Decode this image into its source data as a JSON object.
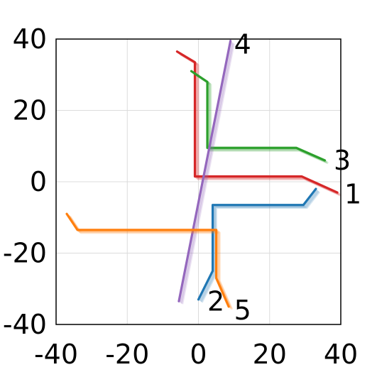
{
  "chart_data": {
    "type": "line",
    "title": "",
    "xlabel": "",
    "ylabel": "",
    "xlim": [
      -40,
      40
    ],
    "ylim": [
      -40,
      40
    ],
    "grid": true,
    "xticks": [
      "-40",
      "-20",
      "0",
      "20",
      "40"
    ],
    "yticks": [
      "40",
      "20",
      "0",
      "-20",
      "-40"
    ],
    "series": [
      {
        "label": "1",
        "color": "#d62728",
        "points": [
          [
            -6,
            36.5
          ],
          [
            -1,
            33.5
          ],
          [
            -1,
            1.5
          ],
          [
            29,
            1.5
          ],
          [
            39,
            -3
          ]
        ],
        "label_pos": [
          41,
          -3.5
        ],
        "shadows": [
          [
            -5,
            33
          ],
          [
            -4,
            29
          ],
          [
            -3,
            25
          ],
          [
            -5,
            3
          ],
          [
            -4,
            0
          ],
          [
            -3,
            -1.5
          ]
        ]
      },
      {
        "label": "2",
        "color": "#1f77b4",
        "points": [
          [
            0,
            -33
          ],
          [
            4,
            -25
          ],
          [
            4,
            -6.5
          ],
          [
            29.5,
            -6.5
          ],
          [
            33,
            -2
          ]
        ],
        "label_pos": [
          2.5,
          -33.5
        ],
        "shadows": []
      },
      {
        "label": "3",
        "color": "#2ca02c",
        "points": [
          [
            -2,
            31
          ],
          [
            2.5,
            28
          ],
          [
            2.5,
            9.5
          ],
          [
            27.5,
            9.5
          ],
          [
            35.5,
            6
          ]
        ],
        "label_pos": [
          38,
          6
        ],
        "shadows": []
      },
      {
        "label": "4",
        "color": "#9467bd",
        "points": [
          [
            -5.5,
            -33.5
          ],
          [
            9,
            39.5
          ]
        ],
        "label_pos": [
          10,
          38.5
        ],
        "shadows": []
      },
      {
        "label": "5",
        "color": "#ff7f0e",
        "points": [
          [
            -37,
            -9
          ],
          [
            -34,
            -13.5
          ],
          [
            5,
            -13.5
          ],
          [
            5,
            -27
          ],
          [
            8.5,
            -35
          ]
        ],
        "label_pos": [
          10,
          -36
        ],
        "shadows": [
          [
            6,
            -13
          ],
          [
            7,
            -13
          ],
          [
            8,
            -13
          ]
        ]
      }
    ]
  }
}
